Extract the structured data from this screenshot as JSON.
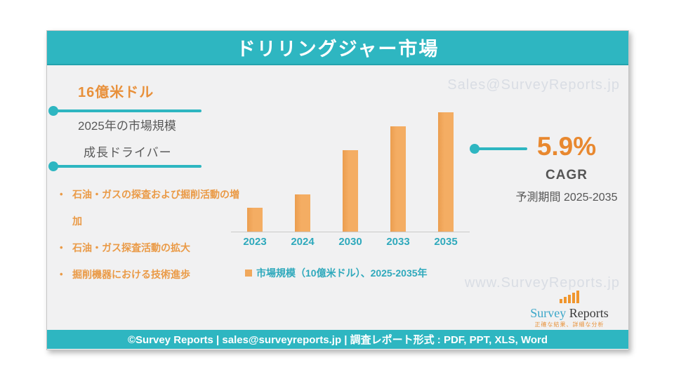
{
  "header": {
    "title": "ドリリングジャー市場"
  },
  "watermarks": {
    "top": "Sales@SurveyReports.jp",
    "bottom": "www.SurveyReports.jp"
  },
  "left_panel": {
    "headline": "16億米ドル",
    "subtitle": "2025年の市場規模",
    "drivers_title": "成長ドライバー",
    "drivers": [
      "石油・ガスの探査および掘削活動の増加",
      "石油・ガス探査活動の拡大",
      "掘削機器における技術進歩"
    ]
  },
  "cagr": {
    "value": "5.9%",
    "label": "CAGR",
    "period": "予測期間 2025-2035"
  },
  "chart_data": {
    "type": "bar",
    "categories": [
      "2023",
      "2024",
      "2030",
      "2033",
      "2035"
    ],
    "values": [
      20,
      31,
      68,
      88,
      100
    ],
    "ylim": [
      0,
      100
    ],
    "title": "ドリリングジャー市場",
    "xlabel": "",
    "ylabel": "",
    "grid": false,
    "legend": "市場規模（10億米ドル）、2025-2035年",
    "legend_position": "bottom",
    "bar_color": "#f2a85c"
  },
  "logo": {
    "name_part1": "Survey",
    "name_part2": "Reports",
    "tagline": "正確な結果、詳細な分析"
  },
  "footer": {
    "text": "©Survey Reports | sales@surveyreports.jp |  調査レポート形式 : PDF, PPT, XLS, Word"
  },
  "colors": {
    "teal": "#2eb6c1",
    "orange_text": "#e8903a",
    "bar_orange": "#f2a85c",
    "gray_text": "#595959",
    "watermark": "#d9dde4"
  }
}
